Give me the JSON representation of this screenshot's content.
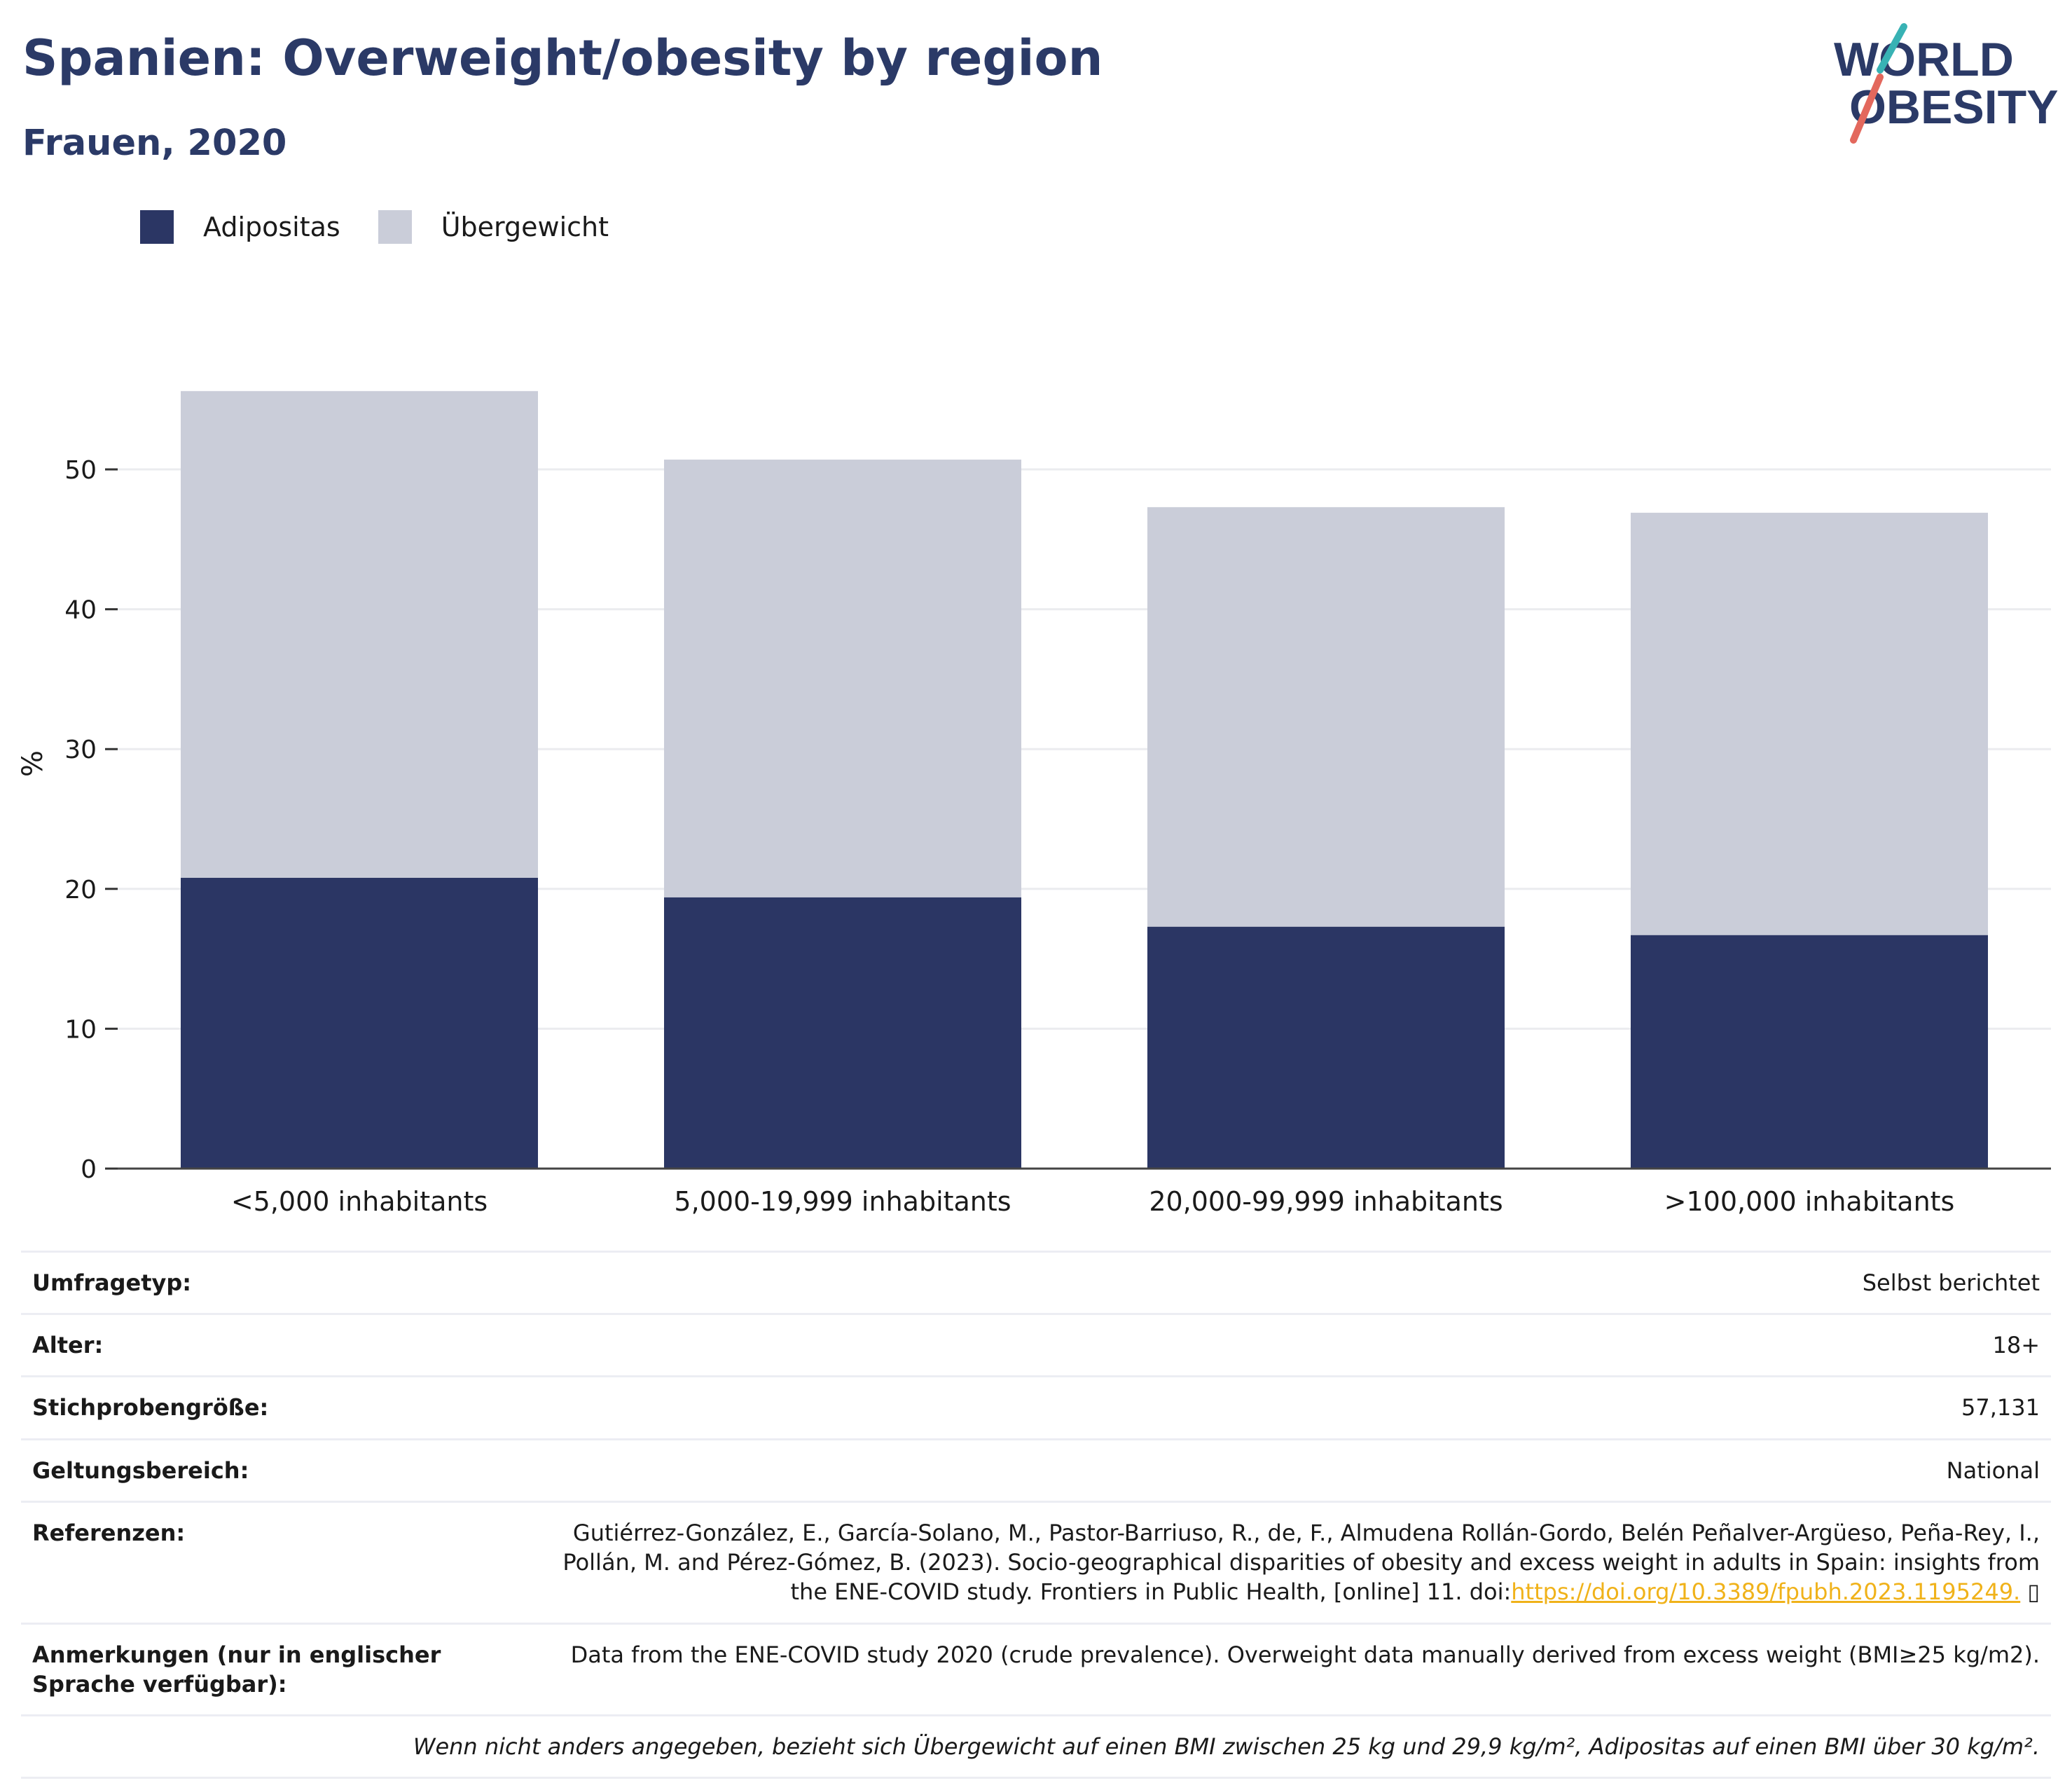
{
  "header": {
    "title": "Spanien: Overweight/obesity by region",
    "subtitle": "Frauen, 2020",
    "logo": {
      "line1": "WORLD",
      "line2": "OBESITY"
    }
  },
  "legend": [
    {
      "label": "Adipositas",
      "color": "#2b3664"
    },
    {
      "label": "Übergewicht",
      "color": "#cacdd9"
    }
  ],
  "chart_data": {
    "type": "bar",
    "stacked": true,
    "categories": [
      "<5,000 inhabitants",
      "5,000-19,999 inhabitants",
      "20,000-99,999 inhabitants",
      ">100,000 inhabitants"
    ],
    "series": [
      {
        "name": "Adipositas",
        "color": "#2b3664",
        "values": [
          20.8,
          19.4,
          17.3,
          16.7
        ]
      },
      {
        "name": "Übergewicht",
        "color": "#cacdd9",
        "values": [
          34.8,
          31.3,
          30.0,
          30.2
        ]
      }
    ],
    "ylabel": "%",
    "ylim": [
      0,
      60
    ],
    "yticks": [
      0,
      10,
      20,
      30,
      40,
      50
    ],
    "grid": true,
    "legend_position": "top-left"
  },
  "info": {
    "rows": [
      {
        "key": "Umfragetyp:",
        "value": "Selbst berichtet"
      },
      {
        "key": "Alter:",
        "value": "18+"
      },
      {
        "key": "Stichprobengröße:",
        "value": "57,131"
      },
      {
        "key": "Geltungsbereich:",
        "value": "National"
      }
    ],
    "references_key": "Referenzen:",
    "references_text": "Gutiérrez-González, E., García-Solano, M., Pastor-Barriuso, R., de, F., Almudena Rollán-Gordo, Belén Peñalver-Argüeso, Peña-Rey, I., Pollán, M. and Pérez-Gómez, B. (2023). Socio-geographical disparities of obesity and excess weight in adults in Spain: insights from the ENE-COVID study. Frontiers in Public Health, [online] 11. doi:",
    "references_link": "https://doi.org/10.3389/fpubh.2023.1195249.",
    "references_link_icon": "▯",
    "notes_key": "Anmerkungen (nur in englischer Sprache verfügbar):",
    "notes_text": "Data from the ENE-COVID study 2020 (crude prevalence). Overweight data manually derived from excess weight (BMI≥25 kg/m2).",
    "footnote": "Wenn nicht anders angegeben, bezieht sich Übergewicht auf einen BMI zwischen 25 kg und 29,9 kg/m², Adipositas auf einen BMI über 30 kg/m²."
  }
}
